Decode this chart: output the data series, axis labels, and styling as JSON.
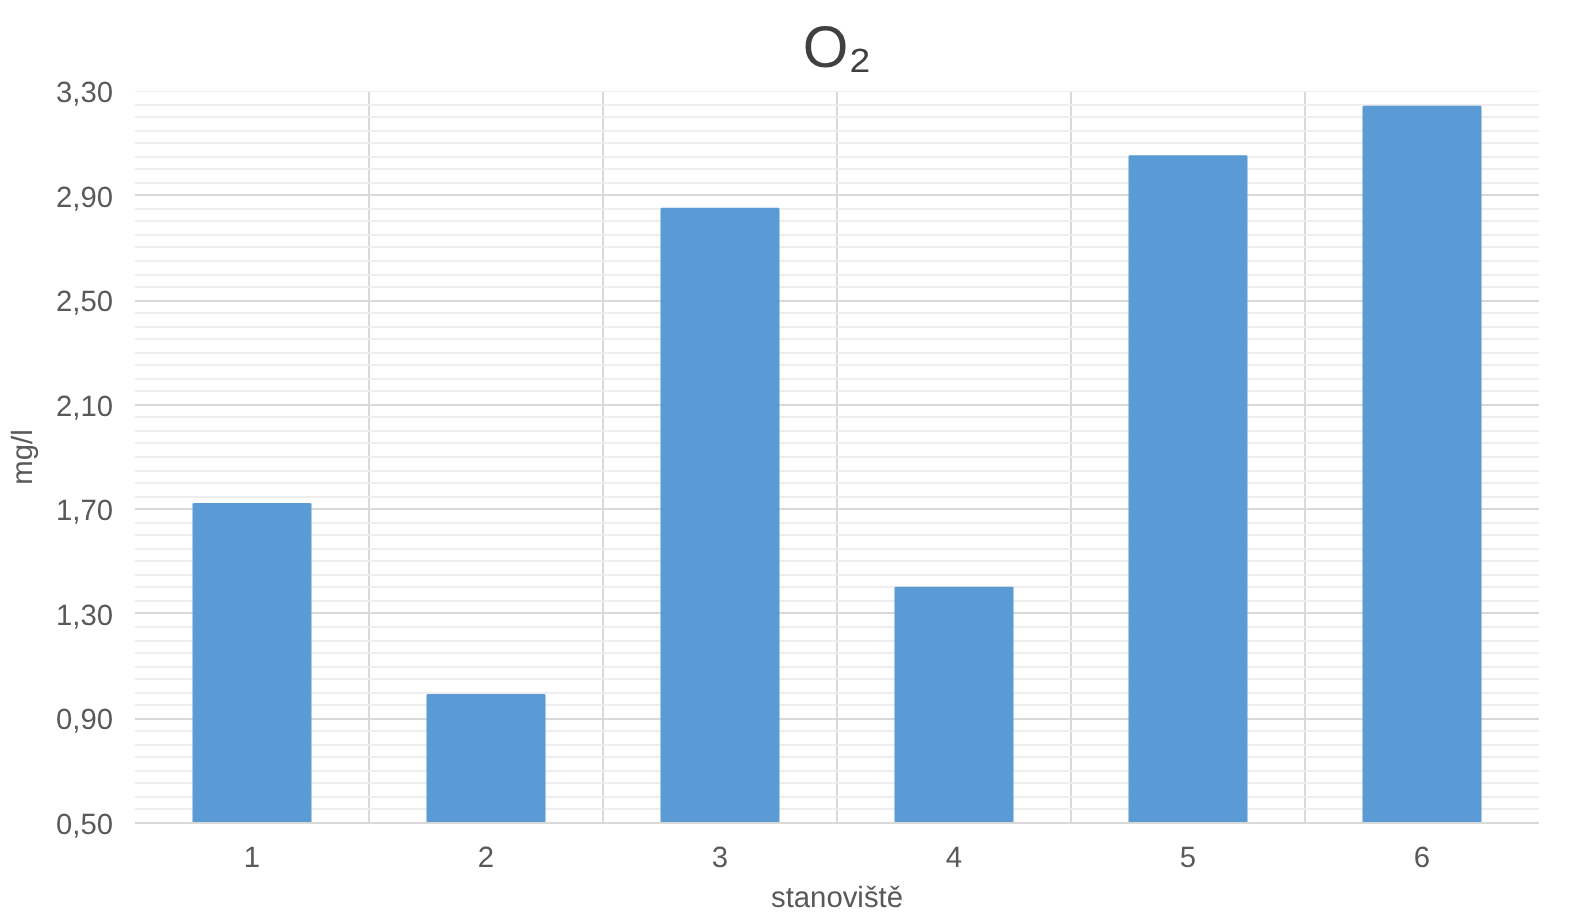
{
  "chart_data": {
    "type": "bar",
    "title": "O₂",
    "xlabel": "stanoviště",
    "ylabel": "mg/l",
    "categories": [
      "1",
      "2",
      "3",
      "4",
      "5",
      "6"
    ],
    "values": [
      1.72,
      0.99,
      2.85,
      1.4,
      3.05,
      3.24
    ],
    "color": "#5b9bd5",
    "ylim": [
      0.5,
      3.3
    ],
    "yticks": [
      {
        "value": 0.5,
        "label": "0,50"
      },
      {
        "value": 0.9,
        "label": "0,90"
      },
      {
        "value": 1.3,
        "label": "1,30"
      },
      {
        "value": 1.7,
        "label": "1,70"
      },
      {
        "value": 2.1,
        "label": "2,10"
      },
      {
        "value": 2.5,
        "label": "2,50"
      },
      {
        "value": 2.9,
        "label": "2,90"
      },
      {
        "value": 3.3,
        "label": "3,30"
      }
    ],
    "grid": true
  }
}
